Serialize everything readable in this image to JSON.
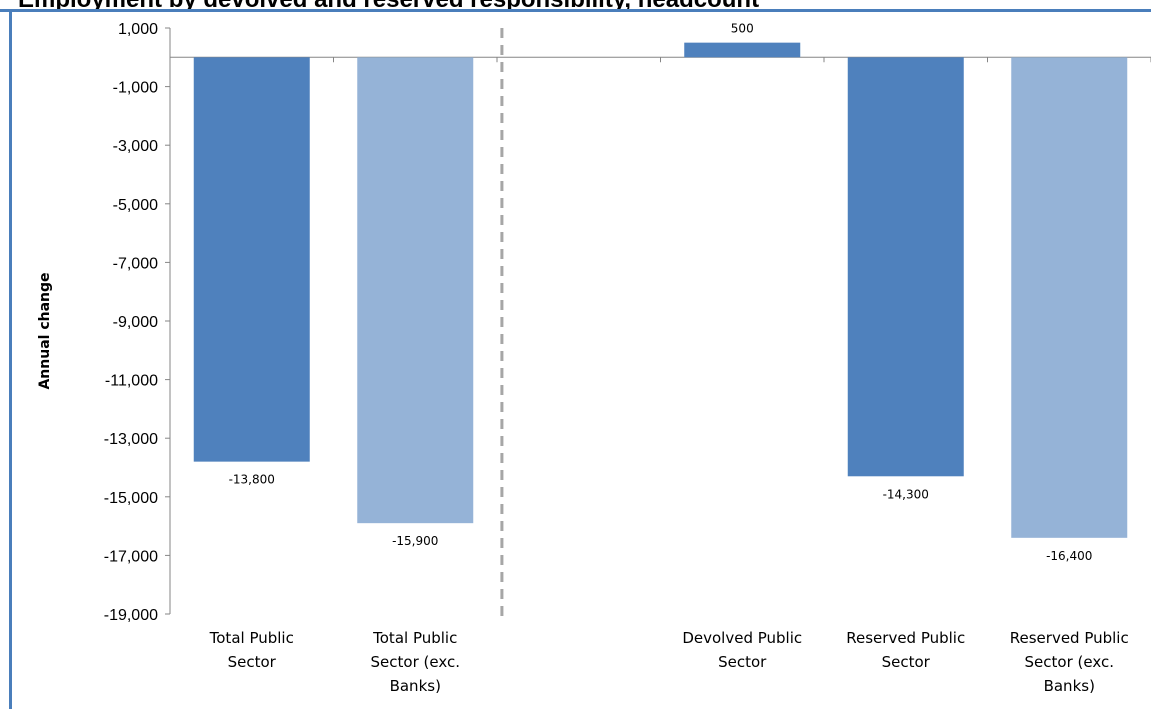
{
  "chart_data": {
    "type": "bar",
    "title": "Employment by devolved and reserved responsibility, headcount",
    "ylabel": "Annual change",
    "xlabel": "",
    "ylim": [
      -19000,
      1000
    ],
    "yticks": [
      1000,
      -1000,
      -3000,
      -5000,
      -7000,
      -9000,
      -11000,
      -13000,
      -15000,
      -17000,
      -19000
    ],
    "ytick_labels": [
      "1,000",
      "-1,000",
      "-3,000",
      "-5,000",
      "-7,000",
      "-9,000",
      "-11,000",
      "-13,000",
      "-15,000",
      "-17,000",
      "-19,000"
    ],
    "categories": [
      [
        "Total Public",
        "Sector"
      ],
      [
        "Total Public",
        "Sector (exc.",
        "Banks)"
      ],
      [],
      [
        "Devolved Public",
        "Sector"
      ],
      [
        "Reserved Public",
        "Sector"
      ],
      [
        "Reserved Public",
        "Sector (exc.",
        "Banks)"
      ]
    ],
    "values": [
      -13800,
      -15900,
      null,
      500,
      -14300,
      -16400
    ],
    "data_labels": [
      "-13,800",
      "-15,900",
      "",
      "500",
      "-14,300",
      "-16,400"
    ],
    "bar_colors": [
      "#4f81bd",
      "#95b3d7",
      "",
      "#4f81bd",
      "#4f81bd",
      "#95b3d7"
    ],
    "divider_after_category": 1,
    "grid": false
  }
}
